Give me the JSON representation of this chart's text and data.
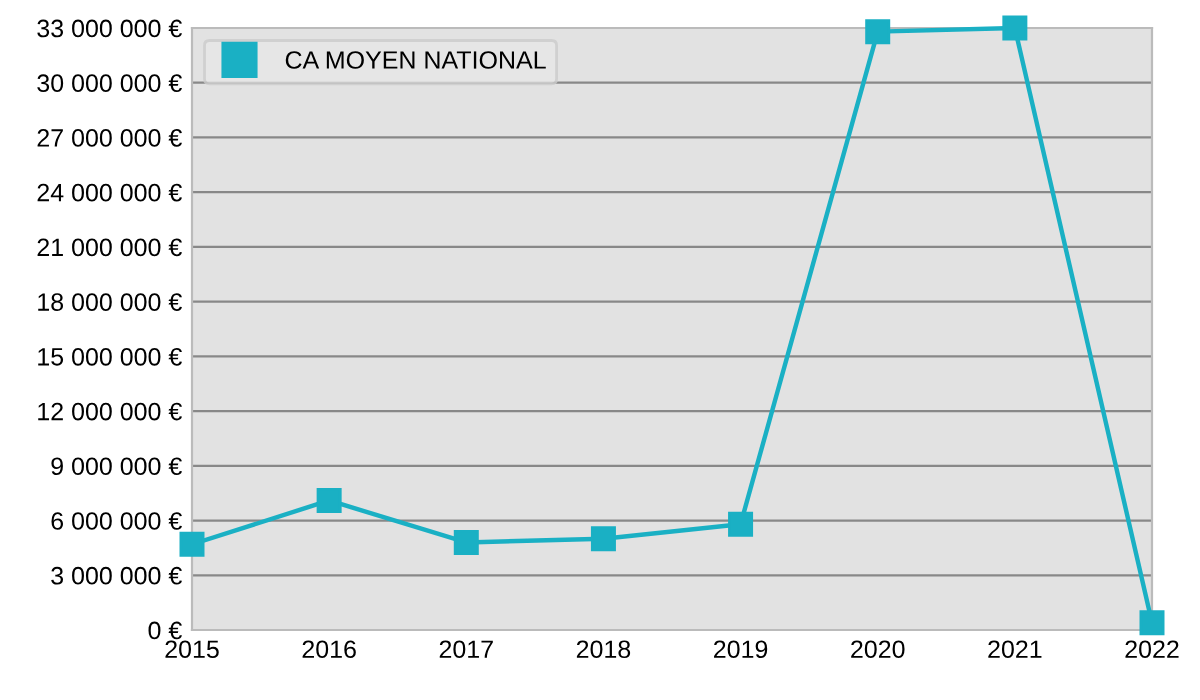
{
  "chart_data": {
    "type": "line",
    "x": [
      2015,
      2016,
      2017,
      2018,
      2019,
      2020,
      2021,
      2022
    ],
    "series": [
      {
        "name": "CA MOYEN NATIONAL",
        "color": "#1ab0c4",
        "values": [
          4700000,
          7100000,
          4800000,
          5000000,
          5800000,
          32800000,
          33000000,
          400000
        ]
      }
    ],
    "xlim": [
      2015,
      2022
    ],
    "xticks": [
      2015,
      2016,
      2017,
      2018,
      2019,
      2020,
      2021,
      2022
    ],
    "ylim": [
      0,
      33000000
    ],
    "yticks": [
      {
        "value": 0,
        "label": "0 €"
      },
      {
        "value": 3000000,
        "label": "3 000 000 €"
      },
      {
        "value": 6000000,
        "label": "6 000 000 €"
      },
      {
        "value": 9000000,
        "label": "9 000 000 €"
      },
      {
        "value": 12000000,
        "label": "12 000 000 €"
      },
      {
        "value": 15000000,
        "label": "15 000 000 €"
      },
      {
        "value": 18000000,
        "label": "18 000 000 €"
      },
      {
        "value": 21000000,
        "label": "21 000 000 €"
      },
      {
        "value": 24000000,
        "label": "24 000 000 €"
      },
      {
        "value": 27000000,
        "label": "27 000 000 €"
      },
      {
        "value": 30000000,
        "label": "30 000 000 €"
      },
      {
        "value": 33000000,
        "label": "33 000 000 €"
      }
    ],
    "grid": "y",
    "legend": "top left",
    "marker": "square",
    "line_style": "solid"
  }
}
